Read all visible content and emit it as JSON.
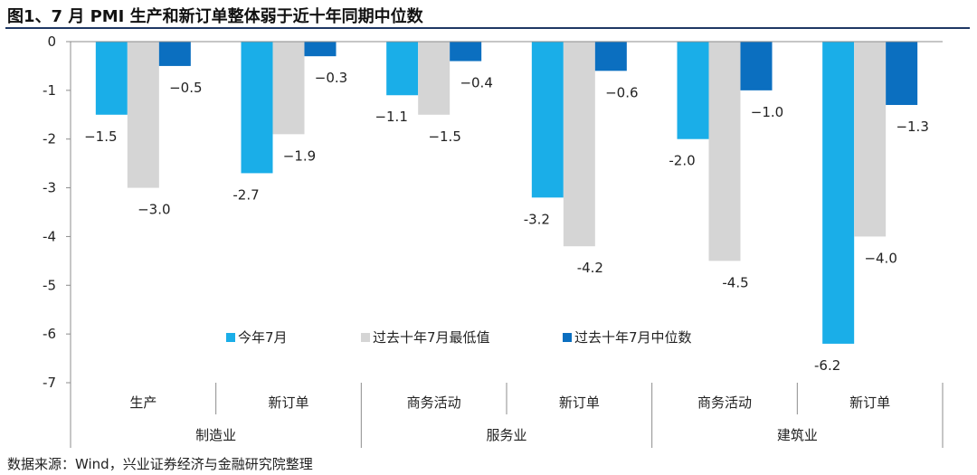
{
  "title": "图1、7 月 PMI 生产和新订单整体弱于近十年同期中位数",
  "source": "数据来源：Wind，兴业证券经济与金融研究院整理",
  "chart_data": {
    "type": "bar",
    "groups": [
      {
        "name": "制造业",
        "categories": [
          "生产",
          "新订单"
        ]
      },
      {
        "name": "服务业",
        "categories": [
          "商务活动",
          "新订单"
        ]
      },
      {
        "name": "建筑业",
        "categories": [
          "商务活动",
          "新订单"
        ]
      }
    ],
    "categories": [
      "生产",
      "新订单",
      "商务活动",
      "新订单",
      "商务活动",
      "新订单"
    ],
    "series": [
      {
        "name": "今年7月",
        "color": "#1aaee8",
        "values": [
          -1.5,
          -2.7,
          -1.1,
          -3.2,
          -2.0,
          -6.2
        ],
        "labels": [
          "−1.5",
          "-2.7",
          "−1.1",
          "-3.2",
          "-2.0",
          "-6.2"
        ]
      },
      {
        "name": "过去十年7月最低值",
        "color": "#d5d5d5",
        "values": [
          -3.0,
          -1.9,
          -1.5,
          -4.2,
          -4.5,
          -4.0
        ],
        "labels": [
          "−3.0",
          "−1.9",
          "−1.5",
          "-4.2",
          "-4.5",
          "−4.0"
        ]
      },
      {
        "name": "过去十年7月中位数",
        "color": "#0b6fc0",
        "values": [
          -0.5,
          -0.3,
          -0.4,
          -0.6,
          -1.0,
          -1.3
        ],
        "labels": [
          "−0.5",
          "−0.3",
          "−0.4",
          "−0.6",
          "−1.0",
          "−1.3"
        ]
      }
    ],
    "ylim": [
      -7,
      0
    ],
    "yticks": [
      "0",
      "-1",
      "-2",
      "-3",
      "-4",
      "-5",
      "-6",
      "-7"
    ],
    "legend_position": "inside-bottom",
    "grid": false
  }
}
